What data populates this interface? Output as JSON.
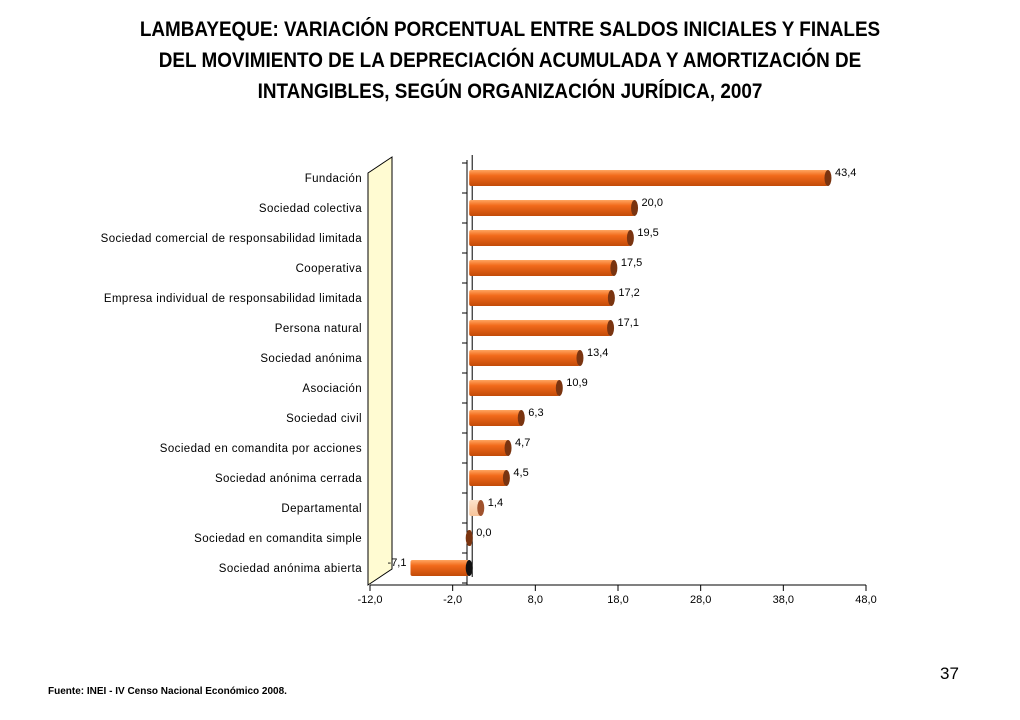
{
  "title_lines": [
    "LAMBAYEQUE: VARIACIÓN PORCENTUAL ENTRE SALDOS INICIALES Y FINALES",
    "DEL MOVIMIENTO DE LA DEPRECIACIÓN ACUMULADA Y AMORTIZACIÓN DE",
    "INTANGIBLES, SEGÚN ORGANIZACIÓN JURÍDICA, 2007"
  ],
  "source": "Fuente: INEI - IV Censo Nacional Económico 2008.",
  "page_number": "37",
  "colors": {
    "bar_main": "#f26a1b",
    "bar_highlight": "#ffa560",
    "bar_shadow": "#c24a08",
    "bar_end": "#7a3410",
    "bar_departamental": "#f7c49a",
    "bar_departamental_end": "#a0522d",
    "bar_negative_end": "#111111",
    "wall": "#fffbd2"
  },
  "chart_data": {
    "type": "bar",
    "orientation": "horizontal",
    "categories": [
      "Fundación",
      "Sociedad colectiva",
      "Sociedad comercial de responsabilidad limitada",
      "Cooperativa",
      "Empresa individual de responsabilidad limitada",
      "Persona natural",
      "Sociedad anónima",
      "Asociación",
      "Sociedad civil",
      "Sociedad en comandita por acciones",
      "Sociedad anónima cerrada",
      "Departamental",
      "Sociedad en comandita simple",
      "Sociedad anónima abierta"
    ],
    "values": [
      43.4,
      20.0,
      19.5,
      17.5,
      17.2,
      17.1,
      13.4,
      10.9,
      6.3,
      4.7,
      4.5,
      1.4,
      0.0,
      -7.1
    ],
    "value_labels": [
      "43,4",
      "20,0",
      "19,5",
      "17,5",
      "17,2",
      "17,1",
      "13,4",
      "10,9",
      "6,3",
      "4,7",
      "4,5",
      "1,4",
      "0,0",
      "-7,1"
    ],
    "highlight_category": "Departamental",
    "x_ticks": [
      -12,
      -2,
      8,
      18,
      28,
      38,
      48
    ],
    "x_tick_labels": [
      "-12,0",
      "-2,0",
      "8,0",
      "18,0",
      "28,0",
      "38,0",
      "48,0"
    ],
    "xlim": [
      -12,
      48
    ],
    "xlabel": "",
    "ylabel": "",
    "grid": false,
    "legend": "none"
  }
}
